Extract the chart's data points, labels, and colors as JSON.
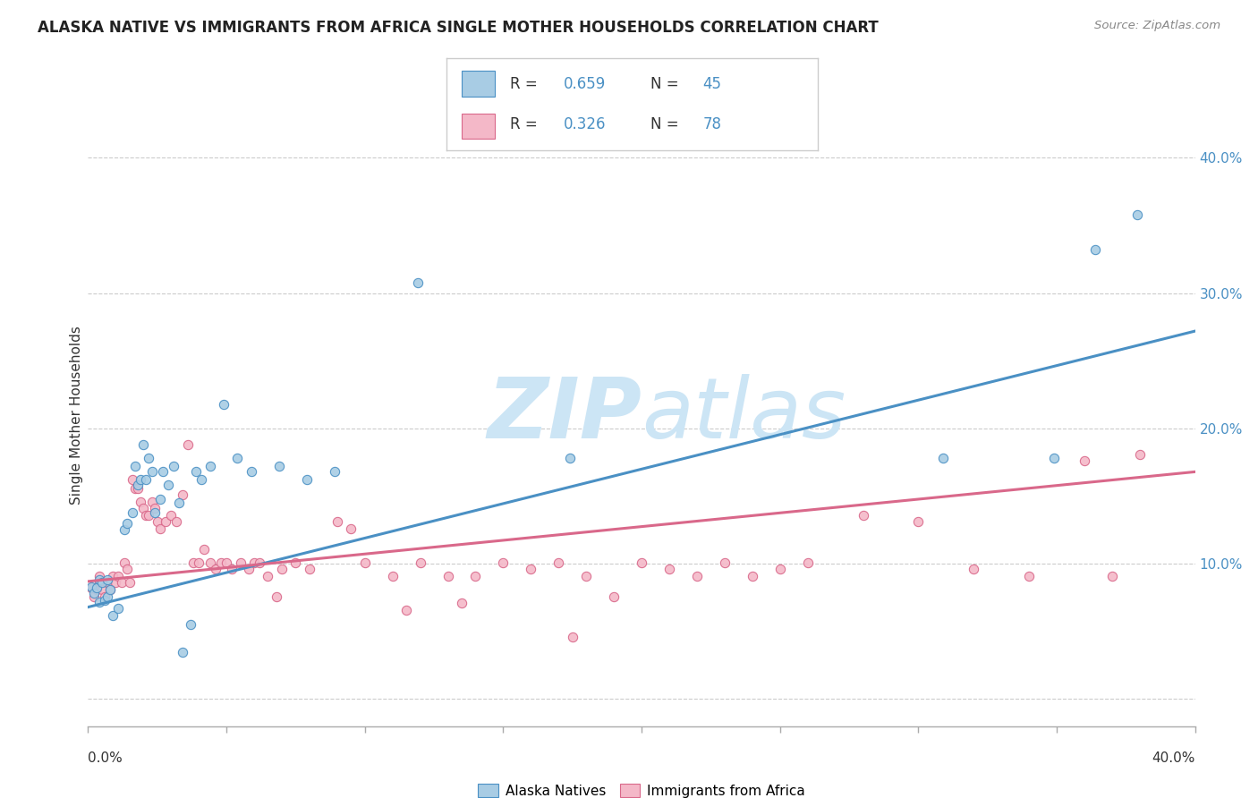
{
  "title": "ALASKA NATIVE VS IMMIGRANTS FROM AFRICA SINGLE MOTHER HOUSEHOLDS CORRELATION CHART",
  "source": "Source: ZipAtlas.com",
  "ylabel": "Single Mother Households",
  "xlim": [
    0.0,
    0.4
  ],
  "ylim": [
    -0.02,
    0.44
  ],
  "yticks": [
    0.0,
    0.1,
    0.2,
    0.3,
    0.4
  ],
  "xticks": [
    0.0,
    0.05,
    0.1,
    0.15,
    0.2,
    0.25,
    0.3,
    0.35,
    0.4
  ],
  "legend_label1": "Alaska Natives",
  "legend_label2": "Immigrants from Africa",
  "color_blue": "#a8cce4",
  "color_pink": "#f4b8c8",
  "line_blue": "#4a90c4",
  "line_pink": "#d9688a",
  "text_dark": "#333333",
  "text_blue": "#4a90c4",
  "watermark_color": "#cce5f5",
  "background_color": "#ffffff",
  "grid_color": "#cccccc",
  "blue_scatter": [
    [
      0.001,
      0.083
    ],
    [
      0.002,
      0.078
    ],
    [
      0.003,
      0.082
    ],
    [
      0.004,
      0.088
    ],
    [
      0.004,
      0.072
    ],
    [
      0.005,
      0.086
    ],
    [
      0.006,
      0.073
    ],
    [
      0.007,
      0.088
    ],
    [
      0.007,
      0.076
    ],
    [
      0.008,
      0.081
    ],
    [
      0.009,
      0.062
    ],
    [
      0.011,
      0.067
    ],
    [
      0.013,
      0.125
    ],
    [
      0.014,
      0.13
    ],
    [
      0.016,
      0.138
    ],
    [
      0.017,
      0.172
    ],
    [
      0.018,
      0.158
    ],
    [
      0.019,
      0.162
    ],
    [
      0.02,
      0.188
    ],
    [
      0.021,
      0.162
    ],
    [
      0.022,
      0.178
    ],
    [
      0.023,
      0.168
    ],
    [
      0.024,
      0.138
    ],
    [
      0.026,
      0.148
    ],
    [
      0.027,
      0.168
    ],
    [
      0.029,
      0.158
    ],
    [
      0.031,
      0.172
    ],
    [
      0.033,
      0.145
    ],
    [
      0.034,
      0.035
    ],
    [
      0.037,
      0.055
    ],
    [
      0.039,
      0.168
    ],
    [
      0.041,
      0.162
    ],
    [
      0.044,
      0.172
    ],
    [
      0.049,
      0.218
    ],
    [
      0.054,
      0.178
    ],
    [
      0.059,
      0.168
    ],
    [
      0.069,
      0.172
    ],
    [
      0.079,
      0.162
    ],
    [
      0.089,
      0.168
    ],
    [
      0.119,
      0.308
    ],
    [
      0.174,
      0.178
    ],
    [
      0.309,
      0.178
    ],
    [
      0.349,
      0.178
    ],
    [
      0.364,
      0.332
    ],
    [
      0.379,
      0.358
    ]
  ],
  "pink_scatter": [
    [
      0.001,
      0.082
    ],
    [
      0.002,
      0.076
    ],
    [
      0.003,
      0.081
    ],
    [
      0.004,
      0.091
    ],
    [
      0.004,
      0.086
    ],
    [
      0.005,
      0.081
    ],
    [
      0.006,
      0.076
    ],
    [
      0.007,
      0.086
    ],
    [
      0.008,
      0.081
    ],
    [
      0.009,
      0.091
    ],
    [
      0.01,
      0.086
    ],
    [
      0.011,
      0.091
    ],
    [
      0.012,
      0.086
    ],
    [
      0.013,
      0.101
    ],
    [
      0.014,
      0.096
    ],
    [
      0.015,
      0.086
    ],
    [
      0.016,
      0.162
    ],
    [
      0.017,
      0.156
    ],
    [
      0.018,
      0.156
    ],
    [
      0.019,
      0.146
    ],
    [
      0.02,
      0.141
    ],
    [
      0.021,
      0.136
    ],
    [
      0.022,
      0.136
    ],
    [
      0.023,
      0.146
    ],
    [
      0.024,
      0.141
    ],
    [
      0.025,
      0.131
    ],
    [
      0.026,
      0.126
    ],
    [
      0.028,
      0.131
    ],
    [
      0.03,
      0.136
    ],
    [
      0.032,
      0.131
    ],
    [
      0.034,
      0.151
    ],
    [
      0.036,
      0.188
    ],
    [
      0.038,
      0.101
    ],
    [
      0.04,
      0.101
    ],
    [
      0.042,
      0.111
    ],
    [
      0.044,
      0.101
    ],
    [
      0.046,
      0.096
    ],
    [
      0.048,
      0.101
    ],
    [
      0.05,
      0.101
    ],
    [
      0.052,
      0.096
    ],
    [
      0.055,
      0.101
    ],
    [
      0.058,
      0.096
    ],
    [
      0.06,
      0.101
    ],
    [
      0.062,
      0.101
    ],
    [
      0.065,
      0.091
    ],
    [
      0.068,
      0.076
    ],
    [
      0.07,
      0.096
    ],
    [
      0.075,
      0.101
    ],
    [
      0.08,
      0.096
    ],
    [
      0.09,
      0.131
    ],
    [
      0.095,
      0.126
    ],
    [
      0.1,
      0.101
    ],
    [
      0.11,
      0.091
    ],
    [
      0.115,
      0.066
    ],
    [
      0.12,
      0.101
    ],
    [
      0.13,
      0.091
    ],
    [
      0.135,
      0.071
    ],
    [
      0.14,
      0.091
    ],
    [
      0.15,
      0.101
    ],
    [
      0.16,
      0.096
    ],
    [
      0.17,
      0.101
    ],
    [
      0.175,
      0.046
    ],
    [
      0.18,
      0.091
    ],
    [
      0.19,
      0.076
    ],
    [
      0.2,
      0.101
    ],
    [
      0.21,
      0.096
    ],
    [
      0.22,
      0.091
    ],
    [
      0.23,
      0.101
    ],
    [
      0.24,
      0.091
    ],
    [
      0.25,
      0.096
    ],
    [
      0.26,
      0.101
    ],
    [
      0.28,
      0.136
    ],
    [
      0.3,
      0.131
    ],
    [
      0.32,
      0.096
    ],
    [
      0.34,
      0.091
    ],
    [
      0.36,
      0.176
    ],
    [
      0.37,
      0.091
    ],
    [
      0.38,
      0.181
    ]
  ],
  "blue_line_x": [
    0.0,
    0.4
  ],
  "blue_line_y": [
    0.068,
    0.272
  ],
  "pink_line_x": [
    0.0,
    0.4
  ],
  "pink_line_y": [
    0.087,
    0.168
  ]
}
